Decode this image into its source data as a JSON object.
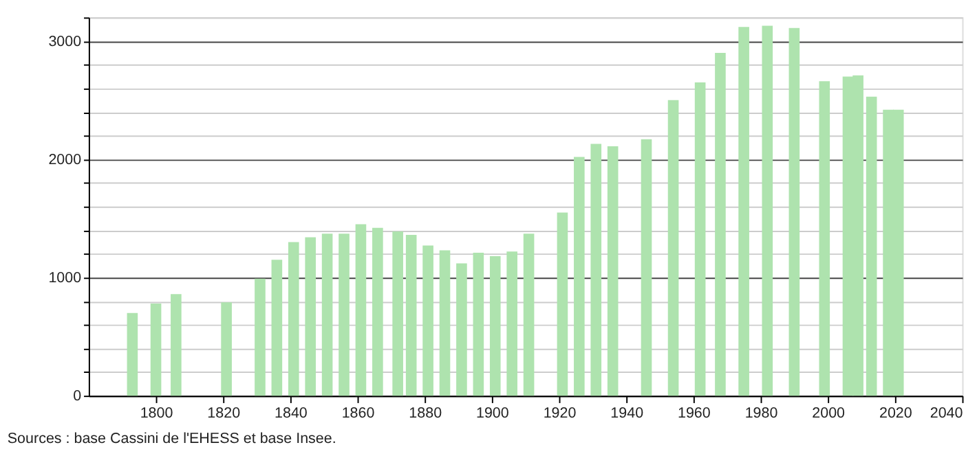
{
  "chart_data": {
    "type": "bar",
    "x": [
      1793,
      1800,
      1806,
      1821,
      1831,
      1836,
      1841,
      1846,
      1851,
      1856,
      1861,
      1866,
      1872,
      1876,
      1881,
      1886,
      1891,
      1896,
      1901,
      1906,
      1911,
      1921,
      1926,
      1931,
      1936,
      1946,
      1954,
      1962,
      1968,
      1975,
      1982,
      1990,
      1999,
      2006,
      2009,
      2013,
      2018,
      2021
    ],
    "values": [
      700,
      780,
      860,
      790,
      990,
      1150,
      1300,
      1340,
      1370,
      1370,
      1450,
      1420,
      1390,
      1360,
      1270,
      1230,
      1120,
      1210,
      1180,
      1220,
      1370,
      1550,
      2020,
      2130,
      2110,
      2170,
      2500,
      2650,
      2900,
      3120,
      3130,
      3110,
      2660,
      2700,
      2710,
      2530,
      2420,
      2420
    ],
    "color": "#aee3ae",
    "xlim": [
      1780,
      2040
    ],
    "xticks": [
      1800,
      1820,
      1840,
      1860,
      1880,
      1900,
      1920,
      1940,
      1960,
      1980,
      2000,
      2020,
      2040
    ],
    "ylim": [
      0,
      3200
    ],
    "yticks": [
      0,
      {
        "value": 200,
        "label": null
      },
      {
        "value": 400,
        "label": null
      },
      {
        "value": 600,
        "label": null
      },
      {
        "value": 800,
        "label": null
      },
      1000,
      {
        "value": 1200,
        "label": null
      },
      {
        "value": 1400,
        "label": null
      },
      {
        "value": 1600,
        "label": null
      },
      {
        "value": 1800,
        "label": null
      },
      2000,
      {
        "value": 2200,
        "label": null
      },
      {
        "value": 2400,
        "label": null
      },
      {
        "value": 2600,
        "label": null
      },
      {
        "value": 2800,
        "label": null
      },
      3000,
      {
        "value": 3200,
        "label": null
      }
    ],
    "grid": "y",
    "annotations": [
      "Sources : base Cassini de l'EHESS et base Insee."
    ]
  }
}
